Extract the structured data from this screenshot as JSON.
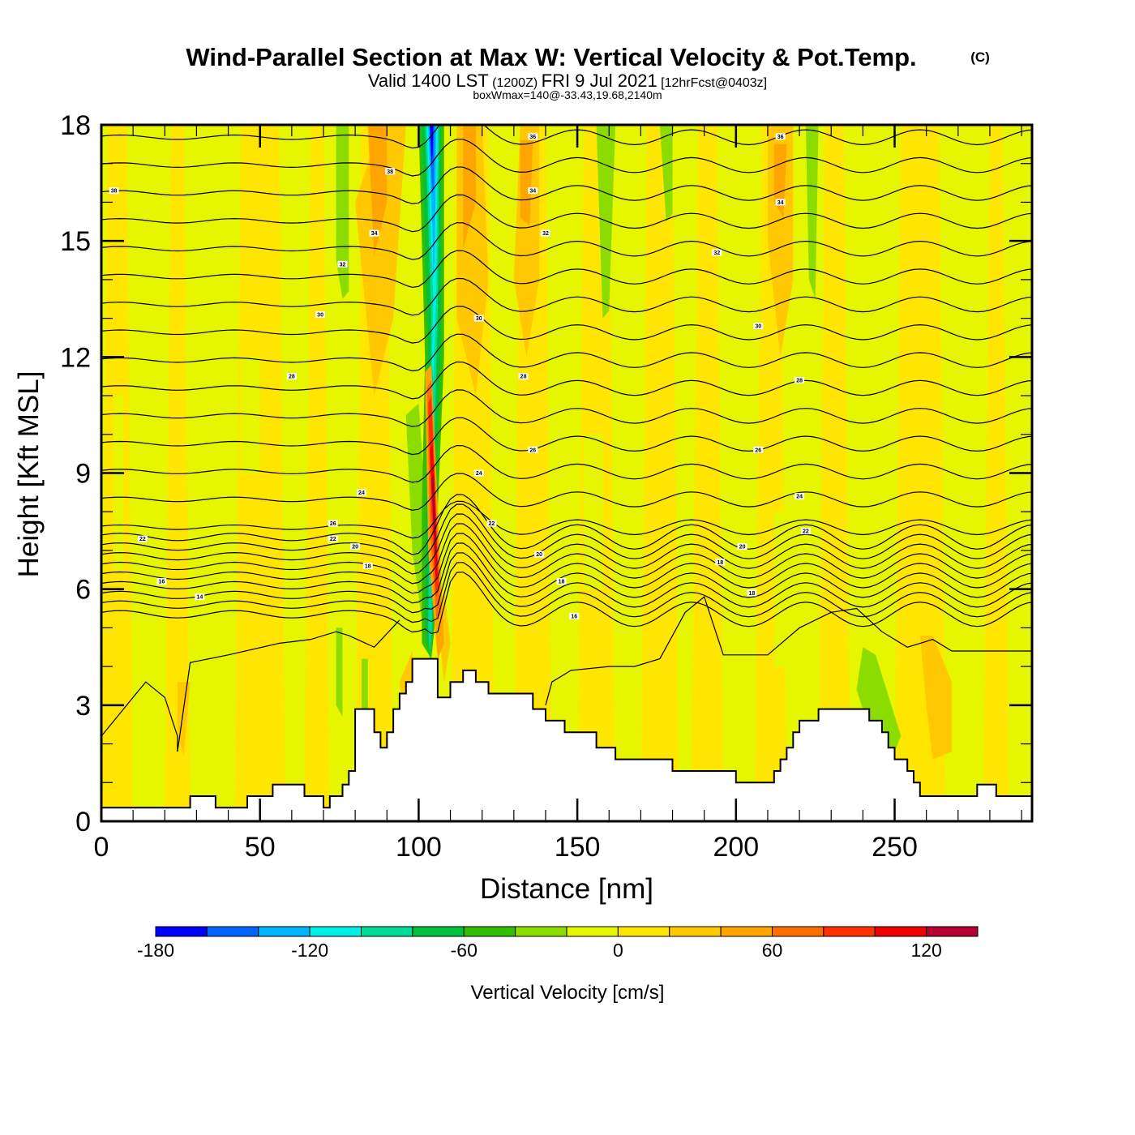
{
  "chart_data": {
    "type": "heatmap",
    "title": "Wind-Parallel Section at Max W: Vertical Velocity & Pot.Temp.",
    "title_mark": "(C)",
    "subtitle": {
      "prefix": "Valid 1400 LST",
      "utc": "(1200Z)",
      "date": "FRI 9 Jul 2021",
      "forecast": "[12hrFcst@0403z]"
    },
    "subtitle2": "boxWmax=140@-33.43,19.68,2140m",
    "xlabel": "Distance [nm]",
    "ylabel": "Height [Kft MSL]",
    "xlim": [
      0,
      293.3
    ],
    "ylim": [
      0,
      18
    ],
    "xticks": [
      0,
      50,
      100,
      150,
      200,
      250
    ],
    "xtick_labels": [
      "0",
      "50",
      "100",
      "150",
      "200",
      "250"
    ],
    "x_minor_step": 10,
    "yticks": [
      0,
      3,
      6,
      9,
      12,
      15,
      18
    ],
    "ytick_labels": [
      "0",
      "3",
      "6",
      "9",
      "12",
      "15",
      "18"
    ],
    "y_minor_step": 1,
    "colorbar": {
      "title": "Vertical Velocity [cm/s]",
      "levels": [
        -180,
        -160,
        -140,
        -120,
        -100,
        -80,
        -60,
        -40,
        -20,
        0,
        20,
        40,
        60,
        80,
        100,
        120,
        140
      ],
      "tick_values": [
        -180,
        -120,
        -60,
        0,
        60,
        120
      ],
      "tick_labels": [
        "-180",
        "-120",
        "-60",
        "0",
        "60",
        "120"
      ],
      "colors": [
        "#0000ff",
        "#0066ff",
        "#00b4ff",
        "#00f0e6",
        "#00dc96",
        "#00c03c",
        "#32be00",
        "#8cdc00",
        "#e6f500",
        "#ffe600",
        "#ffc800",
        "#ffa500",
        "#ff6e00",
        "#ff3200",
        "#f00000",
        "#b40032"
      ]
    },
    "background_w_bin": "#e6f500",
    "max_w": {
      "value_cms": 140,
      "lat": -33.43,
      "lon": 19.68,
      "height_m": 2140
    },
    "terrain_kft": {
      "x": [
        0,
        28,
        36,
        46,
        54,
        64,
        70,
        72,
        76,
        78,
        80,
        86,
        88,
        90,
        92,
        94,
        96,
        98,
        100,
        106,
        110,
        114,
        118,
        122,
        128,
        130,
        136,
        140,
        146,
        150,
        156,
        162,
        168,
        180,
        200,
        210,
        212,
        214,
        216,
        218,
        220,
        226,
        236,
        242,
        246,
        248,
        250,
        254,
        256,
        258,
        260,
        262,
        264,
        276,
        282,
        293.3
      ],
      "h": [
        0.35,
        0.65,
        0.35,
        0.65,
        0.95,
        0.65,
        0.35,
        0.65,
        0.95,
        1.3,
        2.9,
        2.3,
        1.9,
        2.3,
        2.9,
        3.3,
        3.6,
        4.2,
        4.2,
        3.2,
        3.6,
        3.9,
        3.6,
        3.3,
        3.3,
        3.3,
        2.9,
        2.6,
        2.3,
        2.3,
        1.9,
        1.6,
        1.6,
        1.3,
        1.0,
        1.0,
        1.3,
        1.6,
        1.9,
        2.3,
        2.6,
        2.9,
        2.9,
        2.6,
        2.3,
        1.9,
        1.6,
        1.3,
        1.0,
        0.65,
        0.65,
        0.65,
        0.65,
        0.95,
        0.65,
        0.65
      ]
    },
    "w_features": [
      {
        "name": "downdraft-core",
        "value": -170,
        "color_index": 0
      },
      {
        "name": "updraft-core",
        "value": 140,
        "color_index": 15
      }
    ],
    "isentrope_labels": [
      {
        "text": "38",
        "x": 4,
        "y": 16.3
      },
      {
        "text": "38",
        "x": 91,
        "y": 16.8
      },
      {
        "text": "36",
        "x": 136,
        "y": 17.7
      },
      {
        "text": "34",
        "x": 136,
        "y": 16.3
      },
      {
        "text": "36",
        "x": 214,
        "y": 17.7
      },
      {
        "text": "34",
        "x": 214,
        "y": 16.0
      },
      {
        "text": "34",
        "x": 86,
        "y": 15.2
      },
      {
        "text": "32",
        "x": 76,
        "y": 14.4
      },
      {
        "text": "32",
        "x": 140,
        "y": 15.2
      },
      {
        "text": "32",
        "x": 194,
        "y": 14.7
      },
      {
        "text": "30",
        "x": 69,
        "y": 13.1
      },
      {
        "text": "30",
        "x": 119,
        "y": 13.0
      },
      {
        "text": "30",
        "x": 207,
        "y": 12.8
      },
      {
        "text": "28",
        "x": 60,
        "y": 11.5
      },
      {
        "text": "28",
        "x": 133,
        "y": 11.5
      },
      {
        "text": "28",
        "x": 220,
        "y": 11.4
      },
      {
        "text": "26",
        "x": 73,
        "y": 7.7
      },
      {
        "text": "26",
        "x": 136,
        "y": 9.6
      },
      {
        "text": "26",
        "x": 207,
        "y": 9.6
      },
      {
        "text": "24",
        "x": 82,
        "y": 8.5
      },
      {
        "text": "24",
        "x": 119,
        "y": 9.0
      },
      {
        "text": "24",
        "x": 220,
        "y": 8.4
      },
      {
        "text": "22",
        "x": 13,
        "y": 7.3
      },
      {
        "text": "22",
        "x": 73,
        "y": 7.3
      },
      {
        "text": "22",
        "x": 123,
        "y": 7.7
      },
      {
        "text": "22",
        "x": 222,
        "y": 7.5
      },
      {
        "text": "20",
        "x": 80,
        "y": 7.1
      },
      {
        "text": "20",
        "x": 138,
        "y": 6.9
      },
      {
        "text": "20",
        "x": 202,
        "y": 7.1
      },
      {
        "text": "18",
        "x": 84,
        "y": 6.6
      },
      {
        "text": "18",
        "x": 145,
        "y": 6.2
      },
      {
        "text": "18",
        "x": 195,
        "y": 6.7
      },
      {
        "text": "18",
        "x": 205,
        "y": 5.9
      },
      {
        "text": "16",
        "x": 19,
        "y": 6.2
      },
      {
        "text": "16",
        "x": 149,
        "y": 5.3
      },
      {
        "text": "14",
        "x": 31,
        "y": 5.8
      }
    ]
  }
}
